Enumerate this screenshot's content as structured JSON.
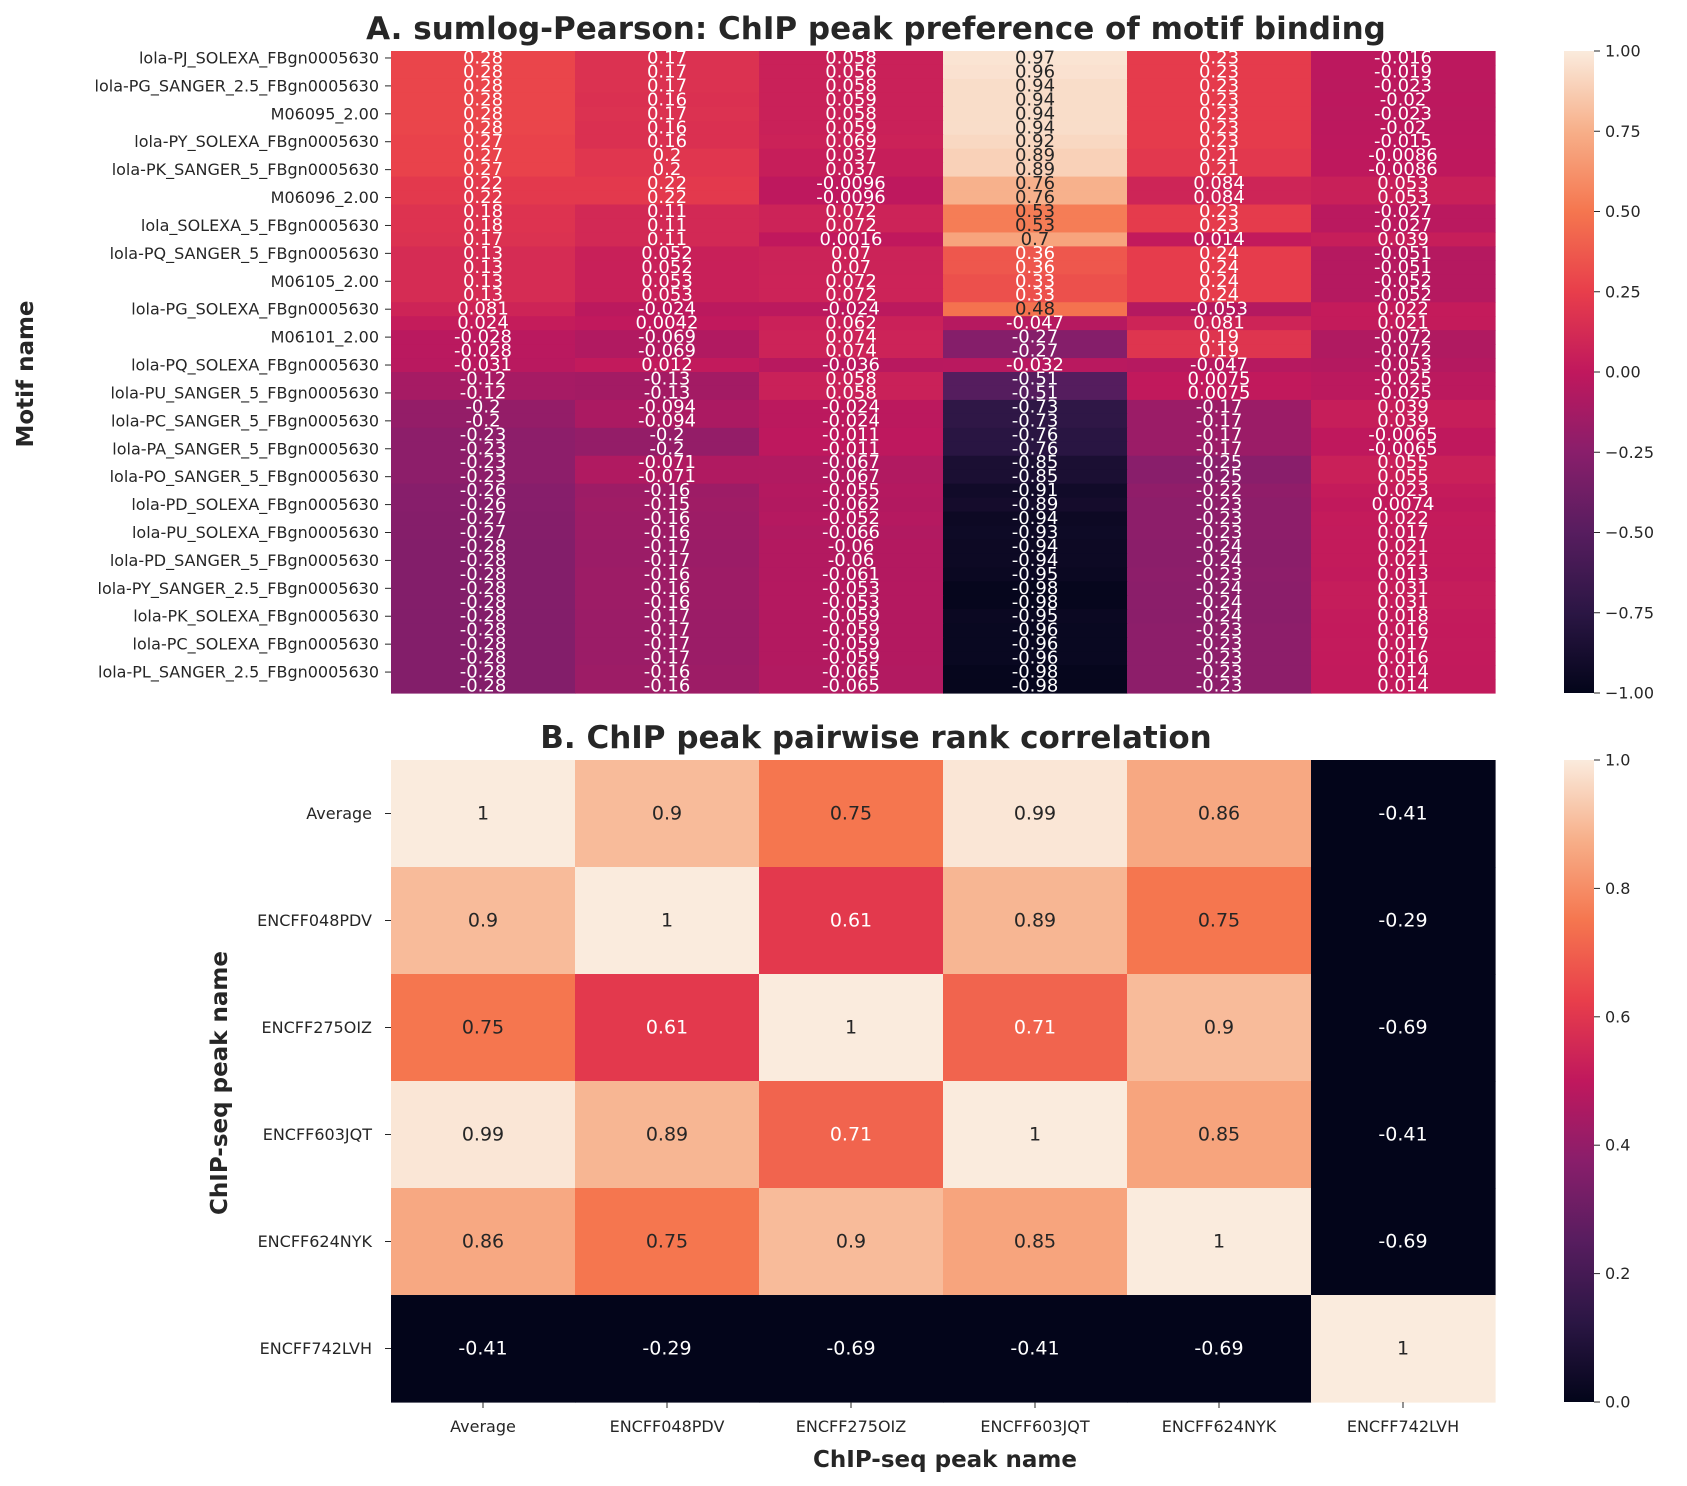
{
  "chart_data": [
    {
      "type": "heatmap",
      "title": "A. sumlog-Pearson: ChIP peak preference of motif binding",
      "ylabel": "Motif name",
      "xlabel": "",
      "columns": [
        "Average",
        "ENCFF048PDV",
        "ENCFF275OIZ",
        "ENCFF603JQT",
        "ENCFF624NYK",
        "ENCFF742LVH"
      ],
      "show_column_ticks": false,
      "row_tick_labels": [
        "lola-PJ_SOLEXA_FBgn0005630",
        "lola-PG_SANGER_2.5_FBgn0005630",
        "M06095_2.00",
        "lola-PY_SOLEXA_FBgn0005630",
        "lola-PK_SANGER_5_FBgn0005630",
        "M06096_2.00",
        "lola_SOLEXA_5_FBgn0005630",
        "lola-PQ_SANGER_5_FBgn0005630",
        "M06105_2.00",
        "lola-PG_SOLEXA_FBgn0005630",
        "M06101_2.00",
        "lola-PQ_SOLEXA_FBgn0005630",
        "lola-PU_SANGER_5_FBgn0005630",
        "lola-PC_SANGER_5_FBgn0005630",
        "lola-PA_SANGER_5_FBgn0005630",
        "lola-PO_SANGER_5_FBgn0005630",
        "lola-PD_SOLEXA_FBgn0005630",
        "lola-PU_SOLEXA_FBgn0005630",
        "lola-PD_SANGER_5_FBgn0005630",
        "lola-PY_SANGER_2.5_FBgn0005630",
        "lola-PK_SOLEXA_FBgn0005630",
        "lola-PC_SOLEXA_FBgn0005630",
        "lola-PL_SANGER_2.5_FBgn0005630"
      ],
      "values": [
        [
          "0.28",
          "0.17",
          "0.058",
          "0.97",
          "0.23",
          "-0.016"
        ],
        [
          "0.28",
          "0.17",
          "0.056",
          "0.96",
          "0.23",
          "-0.019"
        ],
        [
          "0.28",
          "0.17",
          "0.058",
          "0.94",
          "0.23",
          "-0.023"
        ],
        [
          "0.28",
          "0.16",
          "0.059",
          "0.94",
          "0.23",
          "-0.02"
        ],
        [
          "0.28",
          "0.17",
          "0.058",
          "0.94",
          "0.23",
          "-0.023"
        ],
        [
          "0.28",
          "0.16",
          "0.059",
          "0.94",
          "0.23",
          "-0.02"
        ],
        [
          "0.27",
          "0.16",
          "0.069",
          "0.92",
          "0.23",
          "-0.015"
        ],
        [
          "0.27",
          "0.2",
          "0.037",
          "0.89",
          "0.21",
          "-0.0086"
        ],
        [
          "0.27",
          "0.2",
          "0.037",
          "0.89",
          "0.21",
          "-0.0086"
        ],
        [
          "0.22",
          "0.22",
          "-0.0096",
          "0.76",
          "0.084",
          "0.053"
        ],
        [
          "0.22",
          "0.22",
          "-0.0096",
          "0.76",
          "0.084",
          "0.053"
        ],
        [
          "0.18",
          "0.11",
          "0.072",
          "0.53",
          "0.23",
          "-0.027"
        ],
        [
          "0.18",
          "0.11",
          "0.072",
          "0.53",
          "0.23",
          "-0.027"
        ],
        [
          "0.17",
          "0.11",
          "0.0016",
          "0.7",
          "0.014",
          "0.039"
        ],
        [
          "0.13",
          "0.052",
          "0.07",
          "0.36",
          "0.24",
          "-0.051"
        ],
        [
          "0.13",
          "0.052",
          "0.07",
          "0.36",
          "0.24",
          "-0.051"
        ],
        [
          "0.13",
          "0.053",
          "0.072",
          "0.33",
          "0.24",
          "-0.052"
        ],
        [
          "0.13",
          "0.053",
          "0.072",
          "0.33",
          "0.24",
          "-0.052"
        ],
        [
          "0.081",
          "-0.024",
          "-0.024",
          "0.48",
          "-0.053",
          "0.022"
        ],
        [
          "0.024",
          "0.0042",
          "0.062",
          "-0.047",
          "0.081",
          "0.021"
        ],
        [
          "-0.028",
          "-0.069",
          "0.074",
          "-0.27",
          "0.19",
          "-0.072"
        ],
        [
          "-0.028",
          "-0.069",
          "0.074",
          "-0.27",
          "0.19",
          "-0.072"
        ],
        [
          "-0.031",
          "0.012",
          "-0.036",
          "-0.032",
          "-0.047",
          "-0.053"
        ],
        [
          "-0.12",
          "-0.13",
          "0.058",
          "-0.51",
          "0.0075",
          "-0.025"
        ],
        [
          "-0.12",
          "-0.13",
          "0.058",
          "-0.51",
          "0.0075",
          "-0.025"
        ],
        [
          "-0.2",
          "-0.094",
          "-0.024",
          "-0.73",
          "-0.17",
          "0.039"
        ],
        [
          "-0.2",
          "-0.094",
          "-0.024",
          "-0.73",
          "-0.17",
          "0.039"
        ],
        [
          "-0.23",
          "-0.2",
          "-0.011",
          "-0.76",
          "-0.17",
          "-0.0065"
        ],
        [
          "-0.23",
          "-0.2",
          "-0.011",
          "-0.76",
          "-0.17",
          "-0.0065"
        ],
        [
          "-0.23",
          "-0.071",
          "-0.067",
          "-0.85",
          "-0.25",
          "0.055"
        ],
        [
          "-0.23",
          "-0.071",
          "-0.067",
          "-0.85",
          "-0.25",
          "0.055"
        ],
        [
          "-0.26",
          "-0.16",
          "-0.055",
          "-0.91",
          "-0.22",
          "0.023"
        ],
        [
          "-0.26",
          "-0.15",
          "-0.062",
          "-0.89",
          "-0.23",
          "0.0074"
        ],
        [
          "-0.27",
          "-0.16",
          "-0.052",
          "-0.94",
          "-0.23",
          "0.022"
        ],
        [
          "-0.27",
          "-0.16",
          "-0.066",
          "-0.93",
          "-0.23",
          "0.017"
        ],
        [
          "-0.28",
          "-0.17",
          "-0.06",
          "-0.94",
          "-0.24",
          "0.021"
        ],
        [
          "-0.28",
          "-0.17",
          "-0.06",
          "-0.94",
          "-0.24",
          "0.021"
        ],
        [
          "-0.28",
          "-0.16",
          "-0.061",
          "-0.95",
          "-0.23",
          "0.013"
        ],
        [
          "-0.28",
          "-0.16",
          "-0.053",
          "-0.98",
          "-0.24",
          "0.031"
        ],
        [
          "-0.28",
          "-0.16",
          "-0.053",
          "-0.98",
          "-0.24",
          "0.031"
        ],
        [
          "-0.28",
          "-0.17",
          "-0.059",
          "-0.95",
          "-0.24",
          "0.018"
        ],
        [
          "-0.28",
          "-0.17",
          "-0.059",
          "-0.96",
          "-0.23",
          "0.016"
        ],
        [
          "-0.28",
          "-0.17",
          "-0.059",
          "-0.96",
          "-0.23",
          "0.017"
        ],
        [
          "-0.28",
          "-0.17",
          "-0.059",
          "-0.96",
          "-0.23",
          "0.016"
        ],
        [
          "-0.28",
          "-0.16",
          "-0.065",
          "-0.98",
          "-0.23",
          "0.014"
        ],
        [
          "-0.28",
          "-0.16",
          "-0.065",
          "-0.98",
          "-0.23",
          "0.014"
        ]
      ],
      "colorbar": {
        "range": [
          -1,
          1
        ],
        "ticks": [
          "1.00",
          "0.75",
          "0.50",
          "0.25",
          "0.00",
          "−0.25",
          "−0.50",
          "−0.75",
          "−1.00"
        ]
      },
      "colormap": "rocket"
    },
    {
      "type": "heatmap",
      "title": "B. ChIP peak pairwise rank correlation",
      "ylabel": "ChIP-seq peak name",
      "xlabel": "ChIP-seq peak name",
      "columns": [
        "Average",
        "ENCFF048PDV",
        "ENCFF275OIZ",
        "ENCFF603JQT",
        "ENCFF624NYK",
        "ENCFF742LVH"
      ],
      "row_tick_labels": [
        "Average",
        "ENCFF048PDV",
        "ENCFF275OIZ",
        "ENCFF603JQT",
        "ENCFF624NYK",
        "ENCFF742LVH"
      ],
      "values": [
        [
          "1",
          "0.9",
          "0.75",
          "0.99",
          "0.86",
          "-0.41"
        ],
        [
          "0.9",
          "1",
          "0.61",
          "0.89",
          "0.75",
          "-0.29"
        ],
        [
          "0.75",
          "0.61",
          "1",
          "0.71",
          "0.9",
          "-0.69"
        ],
        [
          "0.99",
          "0.89",
          "0.71",
          "1",
          "0.85",
          "-0.41"
        ],
        [
          "0.86",
          "0.75",
          "0.9",
          "0.85",
          "1",
          "-0.69"
        ],
        [
          "-0.41",
          "-0.29",
          "-0.69",
          "-0.41",
          "-0.69",
          "1"
        ]
      ],
      "colorbar": {
        "range": [
          0,
          1
        ],
        "ticks": [
          "1.0",
          "0.8",
          "0.6",
          "0.4",
          "0.2",
          "0.0"
        ]
      },
      "colormap": "rocket"
    }
  ]
}
